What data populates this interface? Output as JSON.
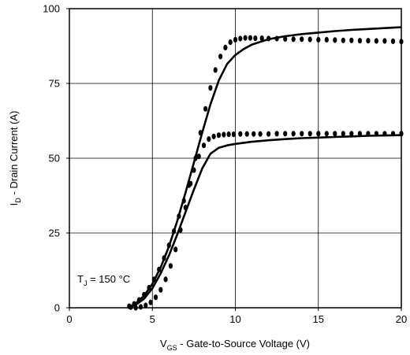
{
  "chart_data": {
    "type": "line",
    "xlabel": {
      "main": "V",
      "sub": "GS",
      "rest": " - Gate-to-Source Voltage (V)"
    },
    "ylabel": {
      "main": "I",
      "sub": "D",
      "rest": " - Drain Current  (A)"
    },
    "xlim": [
      0,
      20
    ],
    "ylim": [
      0,
      100
    ],
    "xticks": [
      0,
      5,
      10,
      15,
      20
    ],
    "yticks": [
      0,
      25,
      50,
      75,
      100
    ],
    "grid": true,
    "annotation": {
      "main": "T",
      "sub": "J",
      "rest": " = 150 °C"
    },
    "series": [
      {
        "style": "solid",
        "x": [
          3.7,
          4.0,
          4.5,
          5.0,
          5.5,
          6.0,
          6.5,
          7.0,
          7.5,
          8.0,
          8.5,
          9.0,
          9.5,
          10.0,
          10.5,
          11.0,
          12.0,
          13.0,
          14.0,
          15.0,
          16.0,
          17.0,
          18.0,
          19.0,
          20.0
        ],
        "y": [
          0.5,
          1.5,
          4.0,
          8.0,
          13.5,
          20.5,
          29.0,
          38.5,
          48.5,
          58.5,
          68.0,
          76.0,
          81.5,
          84.5,
          86.5,
          88.0,
          89.8,
          90.8,
          91.5,
          92.0,
          92.5,
          92.9,
          93.2,
          93.5,
          93.8
        ]
      },
      {
        "style": "solid",
        "x": [
          3.7,
          4.0,
          4.5,
          5.0,
          5.5,
          6.0,
          6.5,
          7.0,
          7.5,
          8.0,
          8.5,
          9.0,
          9.5,
          10.0,
          11.0,
          12.0,
          13.0,
          14.0,
          15.0,
          16.0,
          17.0,
          18.0,
          19.0,
          20.0
        ],
        "y": [
          0.3,
          1.0,
          3.0,
          6.5,
          11.5,
          17.5,
          24.5,
          32.0,
          39.5,
          46.5,
          51.5,
          53.5,
          54.3,
          54.8,
          55.5,
          56.0,
          56.4,
          56.7,
          56.9,
          57.1,
          57.3,
          57.5,
          57.6,
          57.7
        ]
      },
      {
        "style": "dots",
        "x": [
          3.7,
          4.0,
          4.3,
          4.6,
          4.9,
          5.2,
          5.5,
          5.8,
          6.1,
          6.4,
          6.7,
          7.0,
          7.3,
          7.6,
          7.9,
          8.2,
          8.5,
          8.8,
          9.1,
          9.4,
          9.7,
          10.0,
          10.3,
          10.6,
          10.9,
          11.2,
          11.6,
          12.0,
          12.5,
          13.0,
          13.5,
          14.0,
          14.5,
          15.0,
          15.5,
          16.0,
          16.5,
          17.0,
          17.5,
          18.0,
          18.5,
          19.0,
          19.5,
          20.0
        ],
        "y": [
          0.2,
          0.0,
          0.3,
          0.8,
          1.8,
          3.5,
          6.0,
          9.5,
          14.0,
          19.5,
          26.0,
          33.5,
          41.5,
          50.0,
          58.5,
          66.5,
          73.5,
          79.5,
          84.0,
          87.0,
          88.8,
          89.6,
          90.0,
          90.2,
          90.2,
          90.1,
          90.1,
          90.0,
          90.0,
          89.9,
          89.8,
          89.8,
          89.7,
          89.6,
          89.6,
          89.5,
          89.4,
          89.4,
          89.3,
          89.3,
          89.2,
          89.2,
          89.1,
          89.0
        ]
      },
      {
        "style": "dots",
        "x": [
          3.6,
          3.9,
          4.2,
          4.5,
          4.8,
          5.1,
          5.4,
          5.7,
          6.0,
          6.3,
          6.6,
          6.9,
          7.2,
          7.5,
          7.8,
          8.1,
          8.4,
          8.7,
          9.0,
          9.3,
          9.6,
          9.9,
          10.3,
          10.7,
          11.1,
          11.5,
          12.0,
          12.5,
          13.0,
          13.5,
          14.0,
          14.5,
          15.0,
          15.5,
          16.0,
          16.5,
          17.0,
          17.5,
          18.0,
          18.5,
          19.0,
          19.5,
          20.0
        ],
        "y": [
          0.5,
          1.3,
          2.6,
          4.4,
          6.7,
          9.5,
          12.8,
          16.6,
          20.9,
          25.6,
          30.6,
          35.8,
          41.0,
          46.0,
          50.6,
          54.3,
          56.4,
          57.3,
          57.7,
          57.9,
          58.0,
          58.0,
          58.1,
          58.1,
          58.1,
          58.1,
          58.1,
          58.2,
          58.2,
          58.2,
          58.2,
          58.2,
          58.2,
          58.2,
          58.2,
          58.2,
          58.2,
          58.2,
          58.2,
          58.2,
          58.2,
          58.2,
          58.2
        ]
      }
    ]
  }
}
